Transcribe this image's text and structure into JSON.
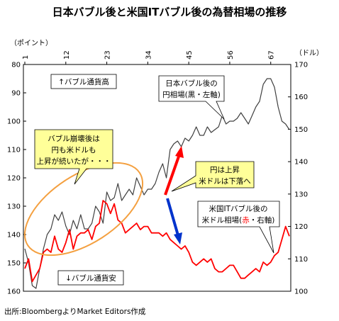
{
  "chart_data": {
    "type": "line",
    "title": "日本バブル後と米国ITバブル後の為替相場の推移",
    "left_unit": "（ポイント）",
    "right_unit": "（ドル）",
    "x_ticks": [
      "1",
      "12",
      "23",
      "34",
      "45",
      "56",
      "67"
    ],
    "left_axis": {
      "min": 80,
      "max": 160,
      "inverted": true,
      "ticks": [
        80,
        90,
        100,
        110,
        120,
        130,
        140,
        150,
        160
      ]
    },
    "right_axis": {
      "min": 100,
      "max": 170,
      "ticks": [
        100,
        110,
        120,
        130,
        140,
        150,
        160,
        170
      ]
    },
    "series": [
      {
        "name": "日本バブル後の円相場(黒・左軸)",
        "axis": "left",
        "color": "#404040",
        "x": [
          1,
          2,
          3,
          4,
          5,
          6,
          7,
          8,
          9,
          10,
          11,
          12,
          13,
          14,
          15,
          16,
          17,
          18,
          19,
          20,
          21,
          22,
          23,
          24,
          25,
          26,
          27,
          28,
          29,
          30,
          31,
          32,
          33,
          34,
          35,
          36,
          37,
          38,
          39,
          40,
          41,
          42,
          43,
          44,
          45,
          46,
          47,
          48,
          49,
          50,
          51,
          52,
          53,
          54,
          55,
          56,
          57,
          58,
          59,
          60,
          61,
          62,
          63,
          64,
          65,
          66,
          67,
          68,
          69,
          70,
          71,
          72
        ],
        "values": [
          145,
          150,
          158,
          159,
          152,
          145,
          140,
          138,
          133,
          135,
          132,
          137,
          140,
          135,
          138,
          133,
          138,
          138,
          136,
          130,
          132,
          136,
          125,
          128,
          127,
          122,
          128,
          126,
          124,
          126,
          120,
          123,
          126,
          124,
          124,
          122,
          118,
          115,
          120,
          110,
          108,
          107,
          109,
          106,
          107,
          105,
          102,
          105,
          105,
          102,
          104,
          103,
          102,
          98,
          101,
          100,
          100,
          99,
          97,
          99,
          101,
          98,
          95,
          93,
          87,
          85,
          85,
          88,
          95,
          100,
          101,
          103
        ]
      },
      {
        "name": "米国ITバブル後の米ドル相場(赤・右軸)",
        "axis": "right",
        "color": "#ff0000",
        "x": [
          1,
          2,
          3,
          4,
          5,
          6,
          7,
          8,
          9,
          10,
          11,
          12,
          13,
          14,
          15,
          16,
          17,
          18,
          19,
          20,
          21,
          22,
          23,
          24,
          25,
          26,
          27,
          28,
          29,
          30,
          31,
          32,
          33,
          34,
          35,
          36,
          37,
          38,
          39,
          40,
          41,
          42,
          43,
          44,
          45,
          46,
          47,
          48,
          49,
          50,
          51,
          52,
          53,
          54,
          55,
          56,
          57,
          58,
          59,
          60,
          61,
          62,
          63,
          64,
          65,
          66,
          67,
          68,
          69,
          70,
          71,
          72
        ],
        "values": [
          107,
          110,
          103,
          105,
          107,
          112,
          113,
          112,
          117,
          113,
          112,
          115,
          119,
          113,
          117,
          118,
          118,
          119,
          116,
          120,
          121,
          128,
          127,
          124,
          127,
          122,
          121,
          118,
          119,
          120,
          121,
          119,
          120,
          120,
          118,
          118,
          118,
          117,
          118,
          116,
          115,
          114,
          113,
          114,
          112,
          109,
          108,
          109,
          110,
          109,
          110,
          107,
          106,
          106,
          107,
          108,
          108,
          106,
          104,
          104,
          105,
          106,
          107,
          106,
          109,
          108,
          109,
          111,
          112,
          116,
          120,
          117
        ]
      }
    ],
    "annotations": {
      "yen_high_label": "↑バブル通貨高",
      "yen_low_label": "↓バブル通貨安",
      "callout_japan": [
        "日本バブル後の",
        "円相場(黒・左軸)"
      ],
      "callout_collapse": [
        "バブル崩壊後は",
        "円も米ドルも",
        "上昇が続いたが・・・"
      ],
      "callout_divergence": [
        "円は上昇",
        "米ドルは下落へ"
      ],
      "callout_us_line1": "米国ITバブル後の",
      "callout_us_line2_prefix": "米ドル相場(",
      "callout_us_line2_red": "赤",
      "callout_us_line2_suffix": "・右軸)"
    },
    "colors": {
      "arrow_up": "#ff0000",
      "arrow_down": "#0033cc",
      "ellipse": "#f4a040",
      "callout_fill": "#ffff99"
    }
  },
  "source": "出所:BloombergよりMarket Editors作成"
}
